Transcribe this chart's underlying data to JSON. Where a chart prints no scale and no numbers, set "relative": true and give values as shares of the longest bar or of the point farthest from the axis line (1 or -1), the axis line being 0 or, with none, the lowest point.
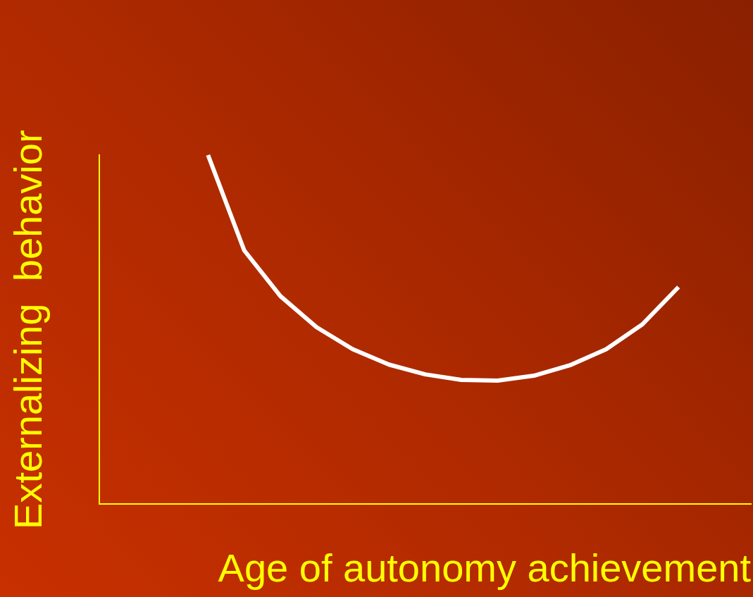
{
  "chart_data": {
    "type": "line",
    "relative": true,
    "xlabel": "Age of autonomy achievement",
    "ylabel": "Externalizing  behavior",
    "categories": [
      null,
      null,
      null,
      null,
      null,
      null,
      null,
      null,
      null,
      null,
      null,
      null,
      null,
      null,
      null,
      null,
      null,
      null,
      null
    ],
    "series": [
      {
        "color": "#ffffff",
        "values": [
          null,
          null,
          null,
          1,
          0.727,
          0.596,
          0.507,
          0.444,
          0.4,
          0.372,
          0.356,
          0.354,
          0.368,
          0.398,
          0.444,
          0.515,
          0.622,
          null,
          null
        ]
      }
    ],
    "grid": false,
    "legend": false,
    "marker": "none",
    "line_style": "solid"
  }
}
